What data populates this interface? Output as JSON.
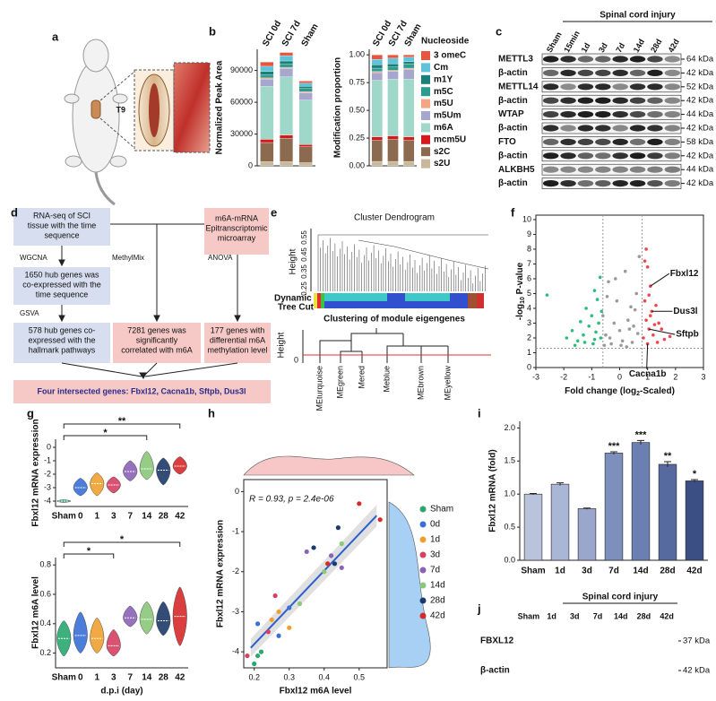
{
  "panel_labels": [
    "a",
    "b",
    "c",
    "d",
    "e",
    "f",
    "g",
    "h",
    "i",
    "j"
  ],
  "a": {
    "level": "T9"
  },
  "c": {
    "header": "Spinal cord injury",
    "lanes": [
      "Sham",
      "15min",
      "1d",
      "3d",
      "7d",
      "14d",
      "28d",
      "42d"
    ],
    "rows": [
      {
        "protein": "METTL3",
        "size": "64 kDa"
      },
      {
        "protein": "β-actin",
        "size": "42 kDa"
      },
      {
        "protein": "METTL14",
        "size": "52 kDa"
      },
      {
        "protein": "β-actin",
        "size": "42 kDa"
      },
      {
        "protein": "WTAP",
        "size": "44 kDa"
      },
      {
        "protein": "β-actin",
        "size": "42 kDa"
      },
      {
        "protein": "FTO",
        "size": "58 kDa"
      },
      {
        "protein": "β-actin",
        "size": "42 kDa"
      },
      {
        "protein": "ALKBH5",
        "size": "44 kDa"
      },
      {
        "protein": "β-actin",
        "size": "42 kDa"
      }
    ]
  },
  "d": {
    "boxes": [
      [
        "RNA-seq of SCI",
        "tissue with the time",
        "sequence"
      ],
      [
        "m6A-mRNA",
        "Epitranscriptomic",
        "microarray"
      ],
      [
        "1650 hub genes was",
        "co-expressed with the",
        "time sequence"
      ],
      [
        "578 hub genes co-",
        "expressed with the",
        "hallmark pathways"
      ],
      [
        "7281 genes was",
        "significantly",
        "correlated with m6A"
      ],
      [
        "177 genes with",
        "differential m6A",
        "methylation level"
      ]
    ],
    "edge_labels": [
      "WGCNA",
      "MethylMix",
      "ANOVA",
      "GSVA"
    ],
    "result": "Four intersected genes: Fbxl12, Cacna1b, Sftpb, Dus3l"
  },
  "e": {
    "title": "Cluster Dendrogram",
    "ylabel": "Height",
    "yticks": [
      "0.25",
      "0.35",
      "0.45",
      "0.55"
    ],
    "track": [
      "Dynamic",
      "Tree Cut"
    ],
    "title2": "Clustering of module eigengenes",
    "ylabel2": "Height",
    "yticks2": [
      "0"
    ],
    "modules": [
      "MEturquoise",
      "MEgreen",
      "Mered",
      "Meblue",
      "MEbrown",
      "MEyellow"
    ]
  },
  "j": {
    "header": "Spinal cord injury",
    "lanes": [
      "Sham",
      "1d",
      "3d",
      "7d",
      "14d",
      "28d",
      "42d"
    ],
    "rows": [
      {
        "protein": "FBXL12",
        "size": "37 kDa"
      },
      {
        "protein": "β-actin",
        "size": "42 kDa"
      }
    ]
  },
  "chart_data": [
    {
      "type": "stacked_bar",
      "ylabel": "Normalized Peak Area",
      "categories": [
        "SCI 0d",
        "SCI 7d",
        "Sham"
      ],
      "ylim": [
        0,
        110000
      ],
      "yticks": [
        0,
        30000,
        60000,
        90000
      ],
      "series": [
        {
          "color": "#c8b89a",
          "values": [
            4000,
            4000,
            3000
          ]
        },
        {
          "color": "#8b6a4f",
          "values": [
            18000,
            22000,
            15000
          ]
        },
        {
          "color": "#d7191c",
          "values": [
            3000,
            3000,
            2000
          ]
        },
        {
          "color": "#9fd8c8",
          "values": [
            50000,
            55000,
            42000
          ]
        },
        {
          "color": "#a7a6cf",
          "values": [
            7000,
            8000,
            7000
          ]
        },
        {
          "color": "#f4a582",
          "values": [
            1000,
            1000,
            1000
          ]
        },
        {
          "color": "#2a9d8f",
          "values": [
            3000,
            3000,
            3000
          ]
        },
        {
          "color": "#1b7f79",
          "values": [
            3000,
            3000,
            2000
          ]
        },
        {
          "color": "#5fc4d8",
          "values": [
            5000,
            5000,
            3000
          ]
        },
        {
          "color": "#e8553e",
          "values": [
            4000,
            3000,
            2000
          ]
        }
      ]
    },
    {
      "type": "stacked_bar",
      "ylabel": "Modification proportion",
      "categories": [
        "SCI 0d",
        "SCI 7d",
        "Sham"
      ],
      "ylim": [
        0,
        1.05
      ],
      "yticks": [
        {
          "value": 0,
          "label": "0.00"
        },
        {
          "value": 0.25,
          "label": "0.25"
        },
        {
          "value": 0.5,
          "label": "0.50"
        },
        {
          "value": 0.75,
          "label": "0.75"
        },
        {
          "value": 1,
          "label": "1.00"
        }
      ],
      "legend_title": "Nucleoside",
      "series": [
        {
          "name": "s2U",
          "color": "#c8b89a",
          "values": [
            0.04,
            0.04,
            0.04
          ]
        },
        {
          "name": "s2C",
          "color": "#8b6a4f",
          "values": [
            0.19,
            0.2,
            0.19
          ]
        },
        {
          "name": "mcm5U",
          "color": "#d7191c",
          "values": [
            0.03,
            0.03,
            0.03
          ]
        },
        {
          "name": "m6A",
          "color": "#9fd8c8",
          "values": [
            0.51,
            0.51,
            0.52
          ]
        },
        {
          "name": "m5Um",
          "color": "#a7a6cf",
          "values": [
            0.07,
            0.07,
            0.09
          ]
        },
        {
          "name": "m5U",
          "color": "#f4a582",
          "values": [
            0.01,
            0.01,
            0.01
          ]
        },
        {
          "name": "m5C",
          "color": "#2a9d8f",
          "values": [
            0.03,
            0.03,
            0.04
          ]
        },
        {
          "name": "m1Y",
          "color": "#1b7f79",
          "values": [
            0.03,
            0.03,
            0.02
          ]
        },
        {
          "name": "Cm",
          "color": "#5fc4d8",
          "values": [
            0.05,
            0.05,
            0.04
          ]
        },
        {
          "name": "3 omeC",
          "color": "#e8553e",
          "values": [
            0.04,
            0.03,
            0.02
          ]
        }
      ]
    },
    {
      "type": "scatter",
      "ylabel": [
        "-log",
        "10",
        " P-value"
      ],
      "xlabel": [
        "Fold change (log",
        "2",
        "-Scaled)"
      ],
      "xlim": [
        -3,
        3
      ],
      "xticks": [
        -3,
        -2,
        -1,
        0,
        1,
        2,
        3
      ],
      "ylim": [
        0,
        10.3
      ],
      "yticks": [
        0,
        1,
        2,
        3,
        4,
        5,
        6,
        7,
        8,
        9,
        10
      ],
      "vlines": [
        -0.6,
        0.8
      ],
      "hline": 1.3,
      "series": [
        {
          "color": "#2dbd7a",
          "x": [
            -2.6,
            -1.9,
            -1.7,
            -1.5,
            -1.4,
            -1.3,
            -1.2,
            -1.1,
            -1.0,
            -0.95,
            -0.9,
            -0.85,
            -0.8,
            -0.75,
            -0.7,
            -0.68,
            -0.65,
            -1.6,
            -1.25,
            -0.9
          ],
          "values": [
            4.9,
            2.0,
            2.5,
            1.8,
            3.1,
            2.2,
            4.0,
            2.8,
            3.5,
            1.6,
            5.2,
            2.4,
            4.6,
            3.0,
            6.1,
            2.0,
            3.8,
            1.5,
            1.7,
            1.9
          ]
        },
        {
          "color": "#9a9a9a",
          "x": [
            -0.6,
            -0.5,
            -0.4,
            -0.3,
            -0.2,
            -0.1,
            0,
            0.1,
            0.2,
            0.3,
            0.4,
            0.5,
            0.6,
            0.7,
            -0.55,
            -0.35,
            0.25,
            0.55,
            -0.15,
            0.65,
            0.45,
            -0.45,
            0.05,
            0.35
          ],
          "values": [
            3.5,
            2.2,
            5.8,
            1.6,
            3.0,
            4.5,
            2.5,
            1.8,
            6.5,
            3.2,
            4.1,
            2.8,
            5.0,
            7.5,
            1.5,
            2.0,
            1.4,
            3.9,
            6.0,
            2.3,
            1.7,
            4.8,
            1.5,
            2.6
          ]
        },
        {
          "color": "#f0474f",
          "x": [
            0.85,
            0.9,
            0.95,
            1.0,
            1.05,
            1.1,
            1.15,
            1.2,
            1.3,
            1.4,
            1.5,
            1.6,
            1.8,
            0.9,
            1.0,
            1.1,
            1.25,
            0.95,
            1.35,
            1.05
          ],
          "values": [
            2.0,
            4.5,
            3.2,
            6.8,
            2.6,
            5.5,
            3.8,
            2.2,
            4.2,
            3.0,
            2.6,
            1.9,
            2.1,
            7.2,
            1.6,
            3.5,
            2.9,
            8.0,
            1.7,
            4.9
          ]
        }
      ],
      "annotations": [
        {
          "text": "Fbxl12",
          "x": 1.1,
          "y": 5.5
        },
        {
          "text": "Dus3l",
          "x": 1.15,
          "y": 3.8
        },
        {
          "text": "Sftpb",
          "x": 1.05,
          "y": 2.6
        },
        {
          "text": "Cacna1b",
          "x": 1.0,
          "y": 1.6
        }
      ]
    },
    {
      "type": "violin",
      "ylabel": "Fbxl12 mRNA expression",
      "categories": [
        "Sham",
        "0",
        "1",
        "3",
        "7",
        "14",
        "28",
        "42"
      ],
      "ylim": [
        -4.4,
        0.6
      ],
      "yticks": [
        -4,
        -3,
        -2,
        -1,
        0
      ],
      "colors": [
        "#2aa870",
        "#3a6fd8",
        "#f0a030",
        "#d64063",
        "#8a62b8",
        "#8ac87a",
        "#1e3a6a",
        "#d62a2a"
      ],
      "median": [
        -4.0,
        -3.0,
        -2.7,
        -2.8,
        -1.8,
        -1.6,
        -1.7,
        -1.4
      ],
      "min": [
        -4.1,
        -3.6,
        -3.6,
        -3.4,
        -2.5,
        -2.4,
        -2.8,
        -2.0
      ],
      "max": [
        -3.9,
        -2.3,
        -1.9,
        -2.2,
        -1.0,
        -0.3,
        -0.8,
        -0.7
      ],
      "brackets": [
        {
          "from": "Sham",
          "to": "42",
          "label": "**"
        },
        {
          "from": "Sham",
          "to": "14",
          "label": "*"
        }
      ]
    },
    {
      "type": "violin",
      "ylabel": "Fbxl12 m6A level",
      "xlabel": "d.p.i (day)",
      "categories": [
        "Sham",
        "0",
        "1",
        "3",
        "7",
        "14",
        "28",
        "42"
      ],
      "ylim": [
        0.1,
        0.85
      ],
      "yticks": [
        0.2,
        0.4,
        0.6,
        0.8
      ],
      "colors": [
        "#2aa870",
        "#3a6fd8",
        "#f0a030",
        "#d64063",
        "#8a62b8",
        "#8ac87a",
        "#1e3a6a",
        "#d62a2a"
      ],
      "median": [
        0.3,
        0.32,
        0.3,
        0.25,
        0.44,
        0.43,
        0.42,
        0.45
      ],
      "min": [
        0.18,
        0.2,
        0.2,
        0.18,
        0.38,
        0.33,
        0.32,
        0.25
      ],
      "max": [
        0.42,
        0.48,
        0.44,
        0.36,
        0.52,
        0.55,
        0.55,
        0.65
      ],
      "brackets": [
        {
          "from": "Sham",
          "to": "42",
          "label": "*"
        },
        {
          "from": "Sham",
          "to": "3",
          "label": "*"
        }
      ]
    },
    {
      "type": "scatter",
      "ylabel": "Fbxl12 mRNA expression",
      "xlabel": "Fbxl12 m6A level",
      "xlim": [
        0.17,
        0.58
      ],
      "xticks": [
        0.2,
        0.3,
        0.4,
        0.5
      ],
      "ylim": [
        -4.4,
        0.3
      ],
      "yticks": [
        -4,
        -3,
        -2,
        -1,
        0
      ],
      "annotation": "R = 0.93, p = 2.4e-06",
      "fit": {
        "color": "#2b5fd0",
        "x": [
          0.19,
          0.55
        ],
        "y": [
          -3.9,
          -0.6
        ]
      },
      "series": [
        {
          "name": "Sham",
          "color": "#2aa870",
          "x": [
            0.2,
            0.21,
            0.22
          ],
          "values": [
            -4.3,
            -4.1,
            -4.0
          ]
        },
        {
          "name": "0d",
          "color": "#3a6fd8",
          "x": [
            0.21,
            0.27,
            0.3
          ],
          "values": [
            -3.3,
            -3.6,
            -2.9
          ]
        },
        {
          "name": "1d",
          "color": "#f0a030",
          "x": [
            0.25,
            0.27,
            0.3
          ],
          "values": [
            -3.2,
            -3.0,
            -3.4
          ]
        },
        {
          "name": "3d",
          "color": "#d64063",
          "x": [
            0.18,
            0.24,
            0.26
          ],
          "values": [
            -4.1,
            -3.5,
            -2.6
          ]
        },
        {
          "name": "7d",
          "color": "#8a62b8",
          "x": [
            0.35,
            0.42,
            0.45
          ],
          "values": [
            -1.5,
            -1.6,
            -1.9
          ]
        },
        {
          "name": "14d",
          "color": "#8ac87a",
          "x": [
            0.33,
            0.4,
            0.45
          ],
          "values": [
            -2.8,
            -2.0,
            -1.3
          ]
        },
        {
          "name": "28d",
          "color": "#1e3a6a",
          "x": [
            0.37,
            0.43,
            0.44
          ],
          "values": [
            -1.4,
            -1.8,
            -0.9
          ]
        },
        {
          "name": "42d",
          "color": "#d62a2a",
          "x": [
            0.41,
            0.5,
            0.56
          ],
          "values": [
            -1.8,
            -0.3,
            -0.7
          ]
        }
      ]
    },
    {
      "type": "bar",
      "ylabel": "Fbxl12 mRNA (fold)",
      "categories": [
        "Sham",
        "1d",
        "3d",
        "7d",
        "14d",
        "28d",
        "42d"
      ],
      "values": [
        1.0,
        1.15,
        0.78,
        1.62,
        1.78,
        1.45,
        1.2
      ],
      "errors": [
        0.01,
        0.02,
        0.01,
        0.02,
        0.03,
        0.04,
        0.02
      ],
      "colors": [
        "#b9c3dc",
        "#aab6d6",
        "#9aa6cc",
        "#7d8fbd",
        "#6b7fb3",
        "#566aa0",
        "#3c4f85"
      ],
      "marks": [
        null,
        null,
        null,
        "***",
        "***",
        "**",
        "*"
      ],
      "ylim": [
        0,
        2.1
      ],
      "yticks": [
        {
          "value": 0,
          "label": "0.0"
        },
        {
          "value": 0.5,
          "label": "0.5"
        },
        {
          "value": 1,
          "label": "1.0"
        },
        {
          "value": 1.5,
          "label": "1.5"
        },
        {
          "value": 2,
          "label": "2.0"
        }
      ]
    }
  ]
}
